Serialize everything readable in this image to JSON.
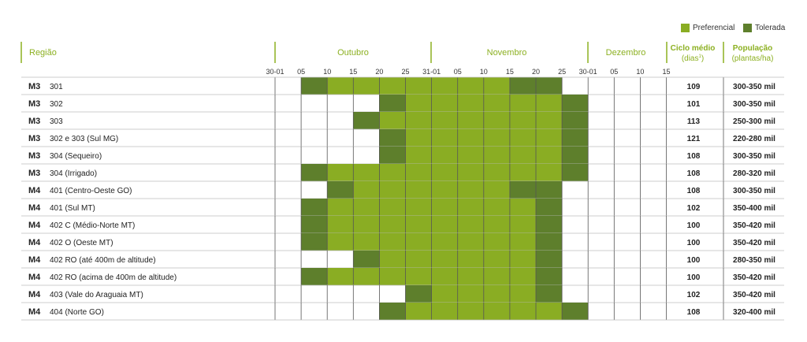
{
  "legend": {
    "preferencial": {
      "label": "Preferencial",
      "color": "#8aad23"
    },
    "tolerada": {
      "label": "Tolerada",
      "color": "#5e7f2c"
    }
  },
  "headers": {
    "regiao": "Região",
    "months": [
      "Outubro",
      "Novembro",
      "Dezembro"
    ],
    "ciclo_line1": "Ciclo médio",
    "ciclo_line2": "(dias",
    "ciclo_sup": "1",
    "ciclo_close": ")",
    "pop_line1": "População",
    "pop_line2": "(plantas/ha)"
  },
  "chart_data": {
    "type": "table",
    "x_ticks": [
      "30-01",
      "05",
      "10",
      "15",
      "20",
      "25",
      "31-01",
      "05",
      "10",
      "15",
      "20",
      "25",
      "30-01",
      "05",
      "10",
      "15"
    ],
    "cell_codes": "0 = not recommended, 1 = Preferencial, 2 = Tolerada; one code per 5-day period between consecutive ticks",
    "rows": [
      {
        "group": "M3",
        "region": "301",
        "cells": [
          0,
          2,
          1,
          1,
          1,
          1,
          1,
          1,
          1,
          2,
          2,
          0,
          0,
          0,
          0
        ],
        "ciclo": "109",
        "populacao": "300-350 mil"
      },
      {
        "group": "M3",
        "region": "302",
        "cells": [
          0,
          0,
          0,
          0,
          2,
          1,
          1,
          1,
          1,
          1,
          1,
          2,
          0,
          0,
          0
        ],
        "ciclo": "101",
        "populacao": "300-350 mil"
      },
      {
        "group": "M3",
        "region": "303",
        "cells": [
          0,
          0,
          0,
          2,
          1,
          1,
          1,
          1,
          1,
          1,
          1,
          2,
          0,
          0,
          0
        ],
        "ciclo": "113",
        "populacao": "250-300 mil"
      },
      {
        "group": "M3",
        "region": "302 e 303 (Sul MG)",
        "cells": [
          0,
          0,
          0,
          0,
          2,
          1,
          1,
          1,
          1,
          1,
          1,
          2,
          0,
          0,
          0
        ],
        "ciclo": "121",
        "populacao": "220-280 mil"
      },
      {
        "group": "M3",
        "region": "304 (Sequeiro)",
        "cells": [
          0,
          0,
          0,
          0,
          2,
          1,
          1,
          1,
          1,
          1,
          1,
          2,
          0,
          0,
          0
        ],
        "ciclo": "108",
        "populacao": "300-350 mil"
      },
      {
        "group": "M3",
        "region": "304 (Irrigado)",
        "cells": [
          0,
          2,
          1,
          1,
          1,
          1,
          1,
          1,
          1,
          1,
          1,
          2,
          0,
          0,
          0
        ],
        "ciclo": "108",
        "populacao": "280-320 mil"
      },
      {
        "group": "M4",
        "region": "401 (Centro-Oeste GO)",
        "cells": [
          0,
          0,
          2,
          1,
          1,
          1,
          1,
          1,
          1,
          2,
          2,
          0,
          0,
          0,
          0
        ],
        "ciclo": "108",
        "populacao": "300-350 mil"
      },
      {
        "group": "M4",
        "region": "401 (Sul MT)",
        "cells": [
          0,
          2,
          1,
          1,
          1,
          1,
          1,
          1,
          1,
          1,
          2,
          0,
          0,
          0,
          0
        ],
        "ciclo": "102",
        "populacao": "350-400 mil"
      },
      {
        "group": "M4",
        "region": "402 C (Médio-Norte MT)",
        "cells": [
          0,
          2,
          1,
          1,
          1,
          1,
          1,
          1,
          1,
          1,
          2,
          0,
          0,
          0,
          0
        ],
        "ciclo": "100",
        "populacao": "350-420 mil"
      },
      {
        "group": "M4",
        "region": "402 O (Oeste MT)",
        "cells": [
          0,
          2,
          1,
          1,
          1,
          1,
          1,
          1,
          1,
          1,
          2,
          0,
          0,
          0,
          0
        ],
        "ciclo": "100",
        "populacao": "350-420 mil"
      },
      {
        "group": "M4",
        "region": "402 RO (até 400m de altitude)",
        "cells": [
          0,
          0,
          0,
          2,
          1,
          1,
          1,
          1,
          1,
          1,
          2,
          0,
          0,
          0,
          0
        ],
        "ciclo": "100",
        "populacao": "280-350 mil"
      },
      {
        "group": "M4",
        "region": "402 RO (acima de 400m de altitude)",
        "cells": [
          0,
          2,
          1,
          1,
          1,
          1,
          1,
          1,
          1,
          1,
          2,
          0,
          0,
          0,
          0
        ],
        "ciclo": "100",
        "populacao": "350-420 mil"
      },
      {
        "group": "M4",
        "region": "403 (Vale do Araguaia MT)",
        "cells": [
          0,
          0,
          0,
          0,
          0,
          2,
          1,
          1,
          1,
          1,
          2,
          0,
          0,
          0,
          0
        ],
        "ciclo": "102",
        "populacao": "350-420 mil"
      },
      {
        "group": "M4",
        "region": "404 (Norte GO)",
        "cells": [
          0,
          0,
          0,
          0,
          2,
          1,
          1,
          1,
          1,
          1,
          1,
          2,
          0,
          0,
          0
        ],
        "ciclo": "108",
        "populacao": "320-400 mil"
      }
    ]
  }
}
